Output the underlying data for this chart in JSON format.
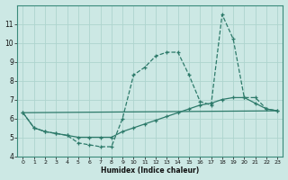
{
  "xlabel": "Humidex (Indice chaleur)",
  "ylabel": "",
  "background_color": "#cce8e4",
  "grid_color": "#aed4ce",
  "line_color": "#2d7a6a",
  "xlim": [
    -0.5,
    23.5
  ],
  "ylim": [
    4,
    12
  ],
  "yticks": [
    4,
    5,
    6,
    7,
    8,
    9,
    10,
    11
  ],
  "xticks": [
    0,
    1,
    2,
    3,
    4,
    5,
    6,
    7,
    8,
    9,
    10,
    11,
    12,
    13,
    14,
    15,
    16,
    17,
    18,
    19,
    20,
    21,
    22,
    23
  ],
  "line1_x": [
    0,
    1,
    2,
    3,
    4,
    5,
    6,
    7,
    8,
    9,
    10,
    11,
    12,
    13,
    14,
    15,
    16,
    17,
    18,
    19,
    20,
    21,
    22,
    23
  ],
  "line1_y": [
    6.3,
    5.5,
    5.3,
    5.2,
    5.1,
    4.7,
    4.6,
    4.5,
    4.5,
    6.0,
    8.3,
    8.7,
    9.3,
    9.5,
    9.5,
    8.3,
    6.9,
    6.7,
    11.5,
    10.2,
    7.1,
    7.1,
    6.5,
    6.4
  ],
  "line2_x": [
    0,
    1,
    2,
    3,
    4,
    5,
    6,
    7,
    8,
    9,
    10,
    11,
    12,
    13,
    14,
    15,
    16,
    17,
    18,
    19,
    20,
    21,
    22,
    23
  ],
  "line2_y": [
    6.3,
    5.5,
    5.3,
    5.2,
    5.1,
    5.0,
    5.0,
    5.0,
    5.0,
    5.3,
    5.5,
    5.7,
    5.9,
    6.1,
    6.3,
    6.5,
    6.7,
    6.8,
    7.0,
    7.1,
    7.1,
    6.8,
    6.5,
    6.4
  ],
  "line3_x": [
    0,
    23
  ],
  "line3_y": [
    6.3,
    6.4
  ]
}
